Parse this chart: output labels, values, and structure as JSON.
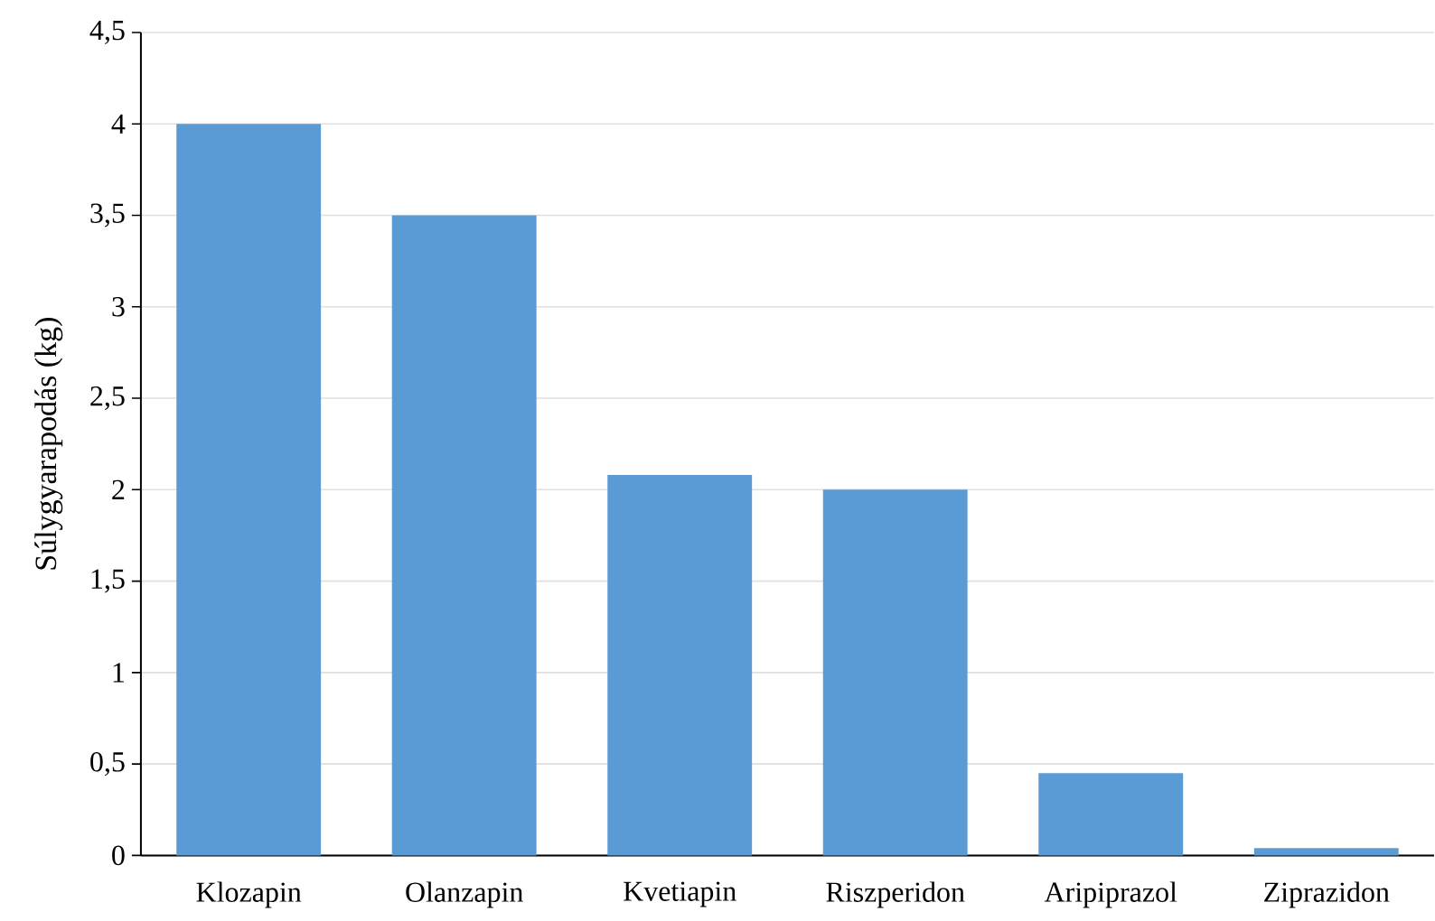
{
  "chart_data": {
    "type": "bar",
    "ylabel": "Súlygyarapodás (kg)",
    "categories": [
      "Klozapin",
      "Olanzapin",
      "Kvetiapin",
      "Riszperidon",
      "Aripiprazol",
      "Ziprazidon"
    ],
    "values": [
      4.0,
      3.5,
      2.08,
      2.0,
      0.45,
      0.04
    ],
    "color": "#5b9bd5",
    "ylim": [
      0,
      4.5
    ],
    "yticks": [
      0,
      {
        "value": 0.5,
        "label": "0,5"
      },
      1,
      {
        "value": 1.5,
        "label": "1,5"
      },
      2,
      {
        "value": 2.5,
        "label": "2,5"
      },
      3,
      {
        "value": 3.5,
        "label": "3,5"
      },
      4,
      {
        "value": 4.5,
        "label": "4,5"
      }
    ],
    "grid": "y"
  }
}
